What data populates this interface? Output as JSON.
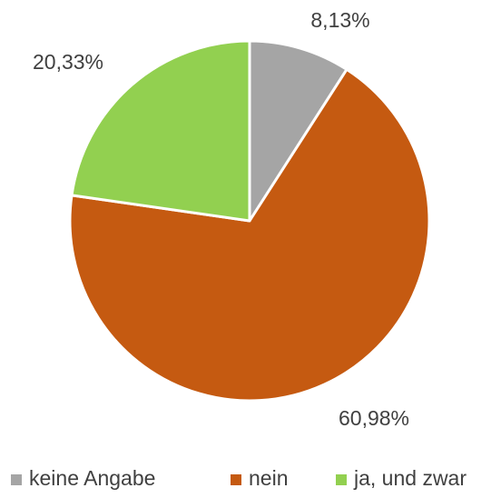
{
  "chart_data": {
    "type": "pie",
    "categories": [
      "keine Angabe",
      "nein",
      "ja, und zwar"
    ],
    "values": [
      8.13,
      60.98,
      20.33
    ],
    "value_labels": [
      "8,13%",
      "60,98%",
      "20,33%"
    ],
    "colors": [
      "#a5a5a5",
      "#c55a11",
      "#92d050"
    ],
    "legend": "bottom"
  }
}
